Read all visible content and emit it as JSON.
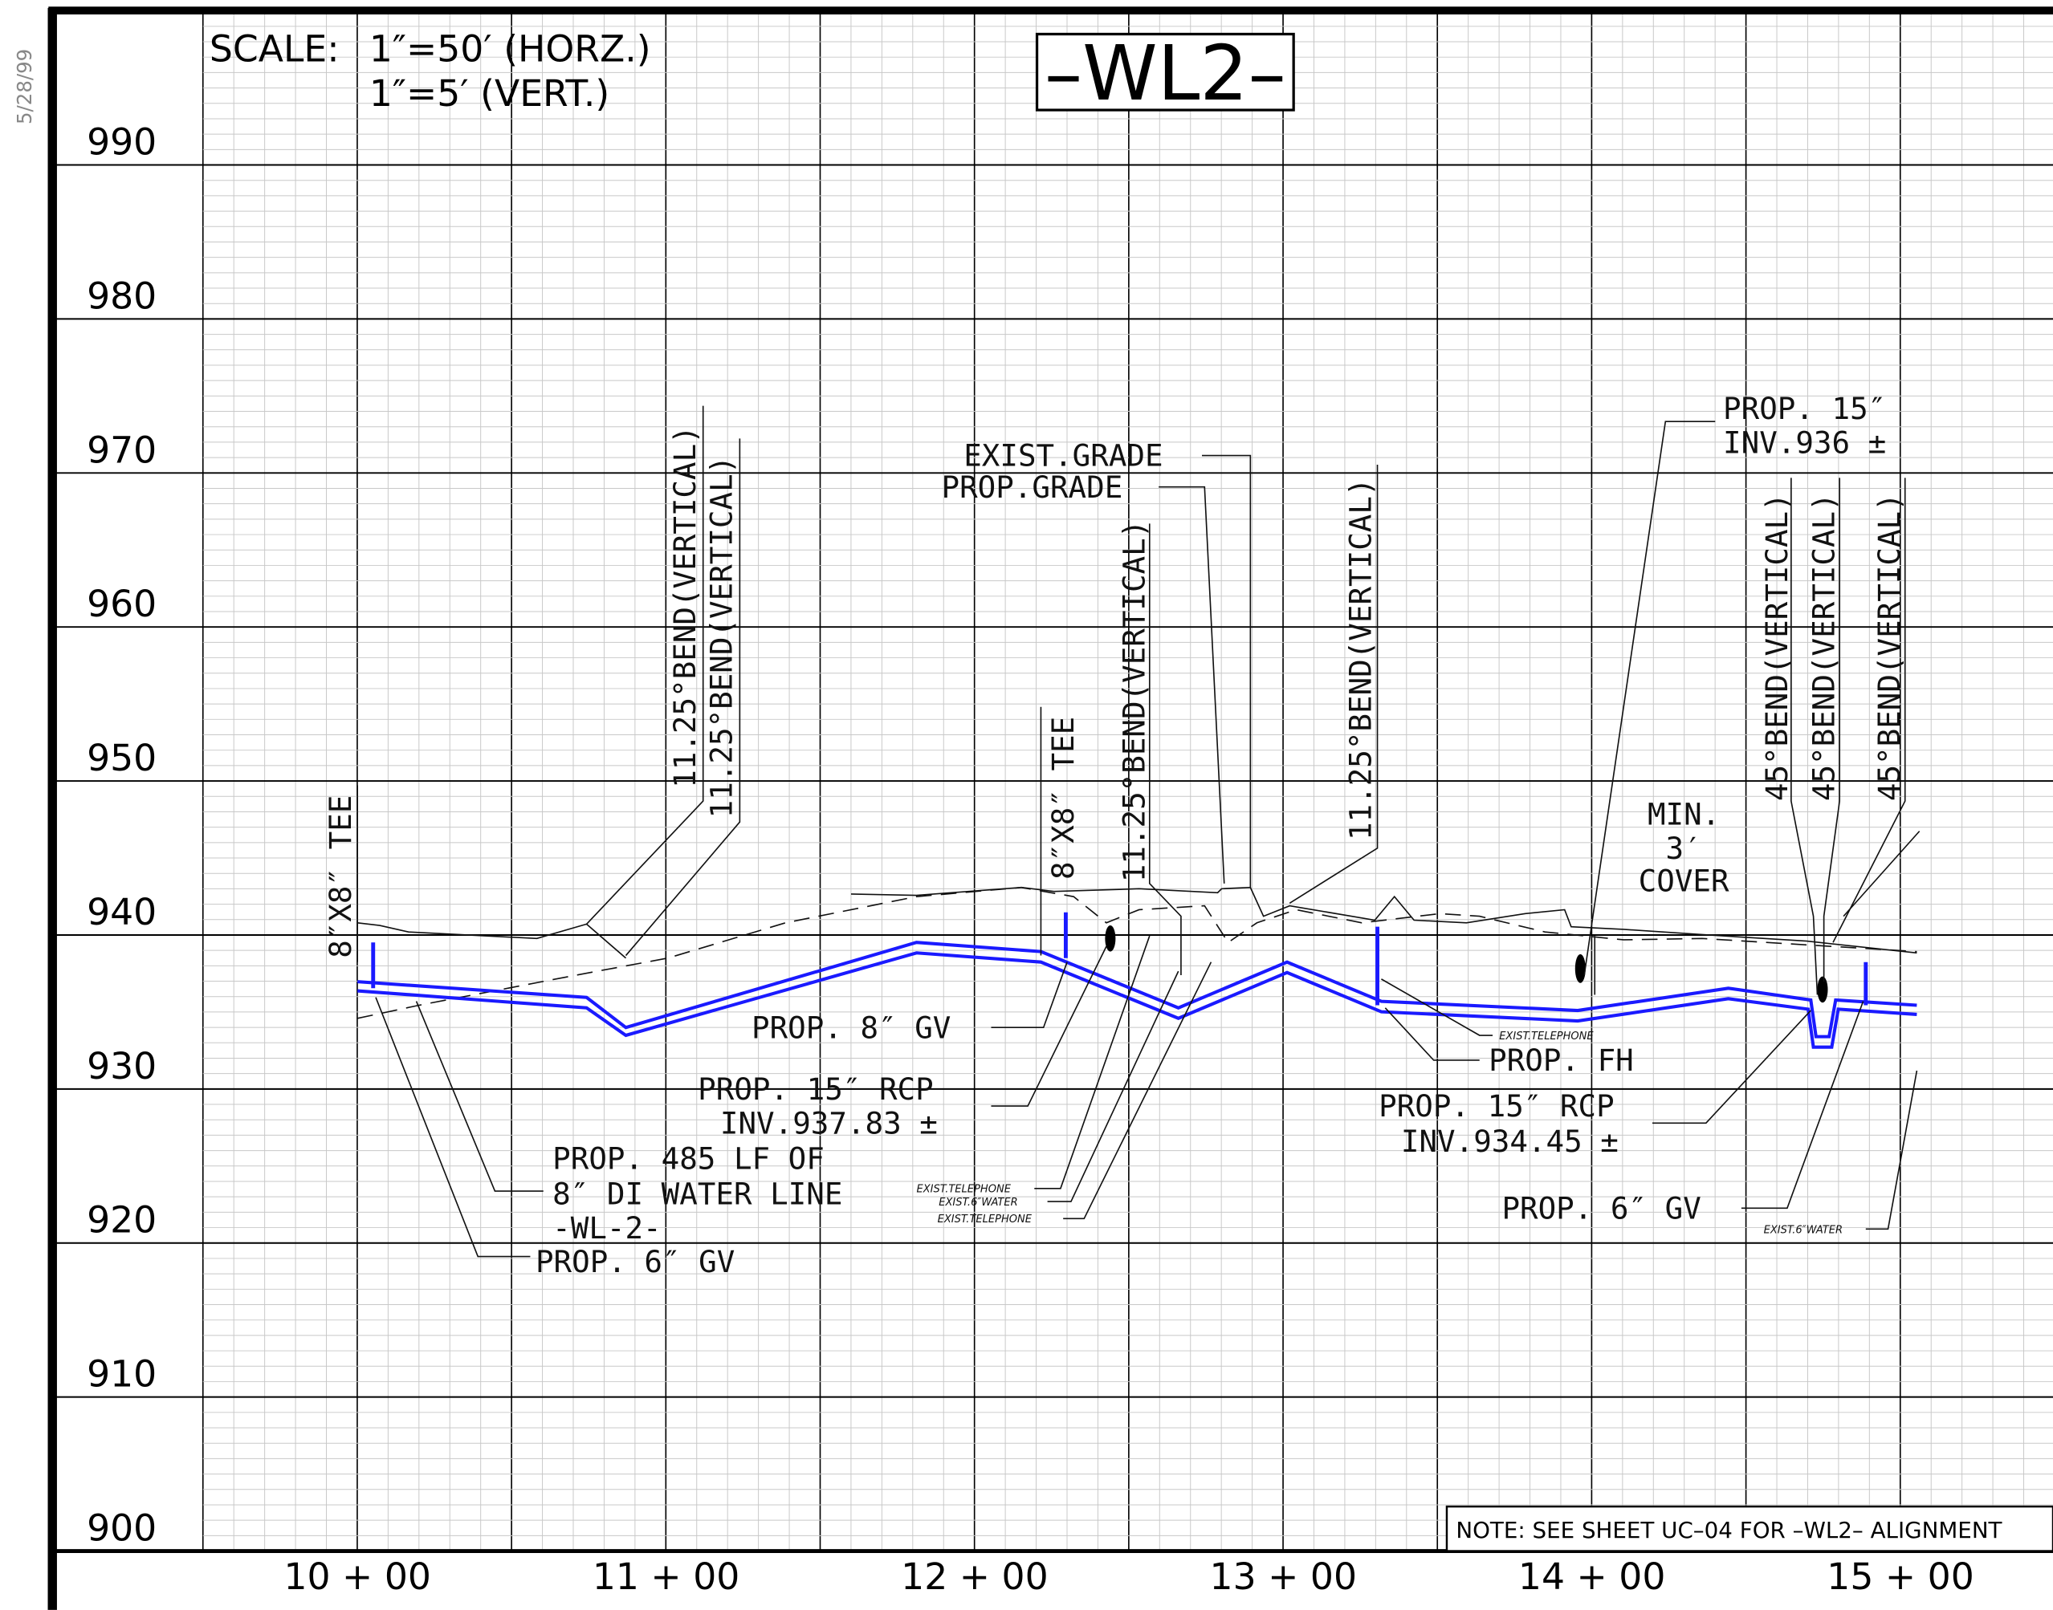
{
  "date": "5/28/99",
  "scale": {
    "label": "SCALE:",
    "horizontal": "1″=50′ (HORZ.)",
    "vertical": "1″=5′ (VERT.)"
  },
  "title": "–WL2–",
  "elevations": [
    "990",
    "980",
    "970",
    "960",
    "950",
    "940",
    "930",
    "920",
    "910",
    "900"
  ],
  "stations": [
    "10 + 00",
    "11 + 00",
    "12 + 00",
    "13 + 00",
    "14 + 00",
    "15 + 00"
  ],
  "note": "NOTE: SEE SHEET UC–04 FOR –WL2– ALIGNMENT",
  "annotations": {
    "tee_1": "8″X8″ TEE",
    "bend_1": "11.25°BEND(VERTICAL)",
    "bend_2": "11.25°BEND(VERTICAL)",
    "exist_grade": "EXIST.GRADE",
    "prop_grade": "PROP.GRADE",
    "tee_2": "8″X8″ TEE",
    "bend_3": "11.25°BEND(VERTICAL)",
    "bend_4": "11.25°BEND(VERTICAL)",
    "rcp_top": [
      "PROP. 15″",
      "INV.936 ±"
    ],
    "bend_5": "45°BEND(VERTICAL)",
    "bend_6": "45°BEND(VERTICAL)",
    "bend_7": "45°BEND(VERTICAL)",
    "cover": [
      "MIN.",
      "3′",
      "COVER"
    ],
    "gv_8": "PROP. 8″ GV",
    "rcp_1": [
      "PROP. 15″ RCP",
      "INV.937.83 ±"
    ],
    "water_line": [
      "PROP. 485 LF OF",
      "8″ DI WATER LINE",
      "-WL-2-"
    ],
    "gv_6_left": "PROP. 6″ GV",
    "utilities_mid": [
      "EXIST.TELEPHONE",
      "EXIST.6″WATER",
      "EXIST.TELEPHONE"
    ],
    "telephone_right": "EXIST.TELEPHONE",
    "fh": "PROP. FH",
    "rcp_2": [
      "PROP. 15″ RCP",
      "INV.934.45 ±"
    ],
    "gv_6_right": "PROP. 6″ GV",
    "water_right": "EXIST.6″WATER"
  }
}
